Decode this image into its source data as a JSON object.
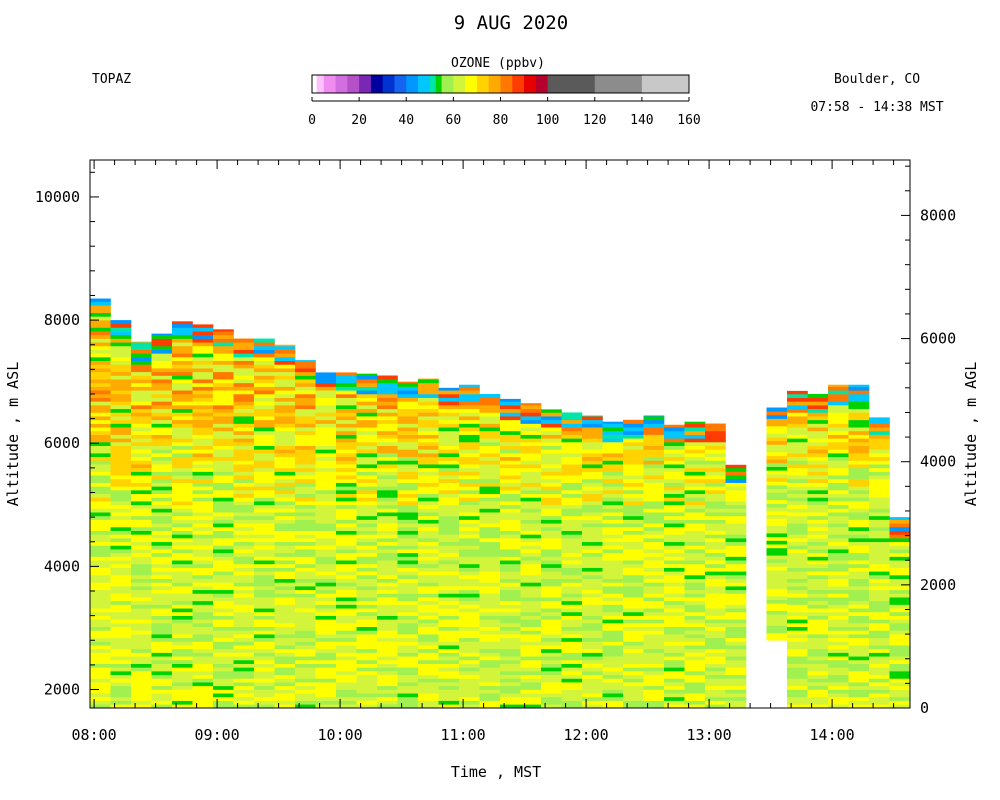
{
  "chart_data": {
    "type": "heatmap",
    "title": "9 AUG 2020",
    "station": "TOPAZ",
    "location": "Boulder, CO",
    "time_range": "07:58 - 14:38 MST",
    "colorbar": {
      "label": "OZONE (ppbv)",
      "ticks": [
        "0",
        "20",
        "40",
        "60",
        "80",
        "100",
        "120",
        "140",
        "160"
      ],
      "range": [
        0,
        160
      ],
      "segments": [
        {
          "from": 0,
          "to": 2,
          "color": "#ffffff"
        },
        {
          "from": 2,
          "to": 5,
          "color": "#ffc0ff"
        },
        {
          "from": 5,
          "to": 10,
          "color": "#f08cf0"
        },
        {
          "from": 10,
          "to": 15,
          "color": "#d26ee0"
        },
        {
          "from": 15,
          "to": 20,
          "color": "#b450c8"
        },
        {
          "from": 20,
          "to": 25,
          "color": "#7828b4"
        },
        {
          "from": 25,
          "to": 30,
          "color": "#0000a0"
        },
        {
          "from": 30,
          "to": 35,
          "color": "#0032d2"
        },
        {
          "from": 35,
          "to": 40,
          "color": "#1464f0"
        },
        {
          "from": 40,
          "to": 45,
          "color": "#0096ff"
        },
        {
          "from": 45,
          "to": 50,
          "color": "#00c8ff"
        },
        {
          "from": 50,
          "to": 52.5,
          "color": "#00e6aa"
        },
        {
          "from": 52.5,
          "to": 55,
          "color": "#00d200"
        },
        {
          "from": 55,
          "to": 60,
          "color": "#a0f050"
        },
        {
          "from": 60,
          "to": 65,
          "color": "#d2f53c"
        },
        {
          "from": 65,
          "to": 70,
          "color": "#ffff00"
        },
        {
          "from": 70,
          "to": 75,
          "color": "#ffd200"
        },
        {
          "from": 75,
          "to": 80,
          "color": "#ffaa00"
        },
        {
          "from": 80,
          "to": 85,
          "color": "#ff7800"
        },
        {
          "from": 85,
          "to": 90,
          "color": "#ff3c00"
        },
        {
          "from": 90,
          "to": 95,
          "color": "#e60000"
        },
        {
          "from": 95,
          "to": 100,
          "color": "#b4002d"
        },
        {
          "from": 100,
          "to": 120,
          "color": "#5a5a5a"
        },
        {
          "from": 120,
          "to": 140,
          "color": "#8c8c8c"
        },
        {
          "from": 140,
          "to": 160,
          "color": "#c8c8c8"
        }
      ]
    },
    "xlabel": "Time , MST",
    "ylabel_left": "Altitude , m ASL",
    "ylabel_right": "Altitude , m AGL",
    "x_ticks": [
      "08:00",
      "09:00",
      "10:00",
      "11:00",
      "12:00",
      "13:00",
      "14:00"
    ],
    "y_left_ticks": [
      "2000",
      "4000",
      "6000",
      "8000",
      "10000"
    ],
    "y_right_ticks": [
      "0",
      "2000",
      "4000",
      "6000",
      "8000"
    ],
    "xlim": [
      "07:58",
      "14:38"
    ],
    "ylim_asl": [
      1700,
      10600
    ],
    "profiles": [
      {
        "t": "07:58",
        "top": 8350,
        "bottom": 1700
      },
      {
        "t": "08:08",
        "top": 8000,
        "bottom": 1700
      },
      {
        "t": "08:18",
        "top": 7650,
        "bottom": 1700
      },
      {
        "t": "08:28",
        "top": 7780,
        "bottom": 1700
      },
      {
        "t": "08:38",
        "top": 7980,
        "bottom": 1700
      },
      {
        "t": "08:48",
        "top": 7930,
        "bottom": 1700
      },
      {
        "t": "08:58",
        "top": 7850,
        "bottom": 1700
      },
      {
        "t": "09:08",
        "top": 7700,
        "bottom": 1700
      },
      {
        "t": "09:18",
        "top": 7700,
        "bottom": 1700
      },
      {
        "t": "09:28",
        "top": 7600,
        "bottom": 1700
      },
      {
        "t": "09:38",
        "top": 7350,
        "bottom": 1700
      },
      {
        "t": "09:48",
        "top": 7150,
        "bottom": 1700
      },
      {
        "t": "09:58",
        "top": 7150,
        "bottom": 1700
      },
      {
        "t": "10:08",
        "top": 7130,
        "bottom": 1700
      },
      {
        "t": "10:18",
        "top": 7100,
        "bottom": 1700
      },
      {
        "t": "10:28",
        "top": 7000,
        "bottom": 1700
      },
      {
        "t": "10:38",
        "top": 7050,
        "bottom": 1700
      },
      {
        "t": "10:48",
        "top": 6900,
        "bottom": 1700
      },
      {
        "t": "10:58",
        "top": 6950,
        "bottom": 1700
      },
      {
        "t": "11:08",
        "top": 6800,
        "bottom": 1700
      },
      {
        "t": "11:18",
        "top": 6720,
        "bottom": 1700
      },
      {
        "t": "11:28",
        "top": 6650,
        "bottom": 1700
      },
      {
        "t": "11:38",
        "top": 6550,
        "bottom": 1700
      },
      {
        "t": "11:48",
        "top": 6500,
        "bottom": 1700
      },
      {
        "t": "11:58",
        "top": 6450,
        "bottom": 1700
      },
      {
        "t": "12:08",
        "top": 6350,
        "bottom": 1700
      },
      {
        "t": "12:18",
        "top": 6380,
        "bottom": 1700
      },
      {
        "t": "12:28",
        "top": 6450,
        "bottom": 1700
      },
      {
        "t": "12:38",
        "top": 6300,
        "bottom": 1700
      },
      {
        "t": "12:48",
        "top": 6350,
        "bottom": 1700
      },
      {
        "t": "12:58",
        "top": 6320,
        "bottom": 1700
      },
      {
        "t": "13:08",
        "top": 5650,
        "bottom": 1700
      },
      {
        "t": "13:28",
        "top": 6580,
        "bottom": 2800
      },
      {
        "t": "13:38",
        "top": 6850,
        "bottom": 1700
      },
      {
        "t": "13:48",
        "top": 6800,
        "bottom": 1700
      },
      {
        "t": "13:58",
        "top": 6950,
        "bottom": 1700
      },
      {
        "t": "14:08",
        "top": 6950,
        "bottom": 1700
      },
      {
        "t": "14:18",
        "top": 6420,
        "bottom": 1700
      },
      {
        "t": "14:28",
        "top": 4800,
        "bottom": 1700
      }
    ],
    "typical_ozone_ppbv": {
      "below_5000m": 63,
      "5000_to_6500m": 72,
      "upper_layer": 55
    }
  }
}
